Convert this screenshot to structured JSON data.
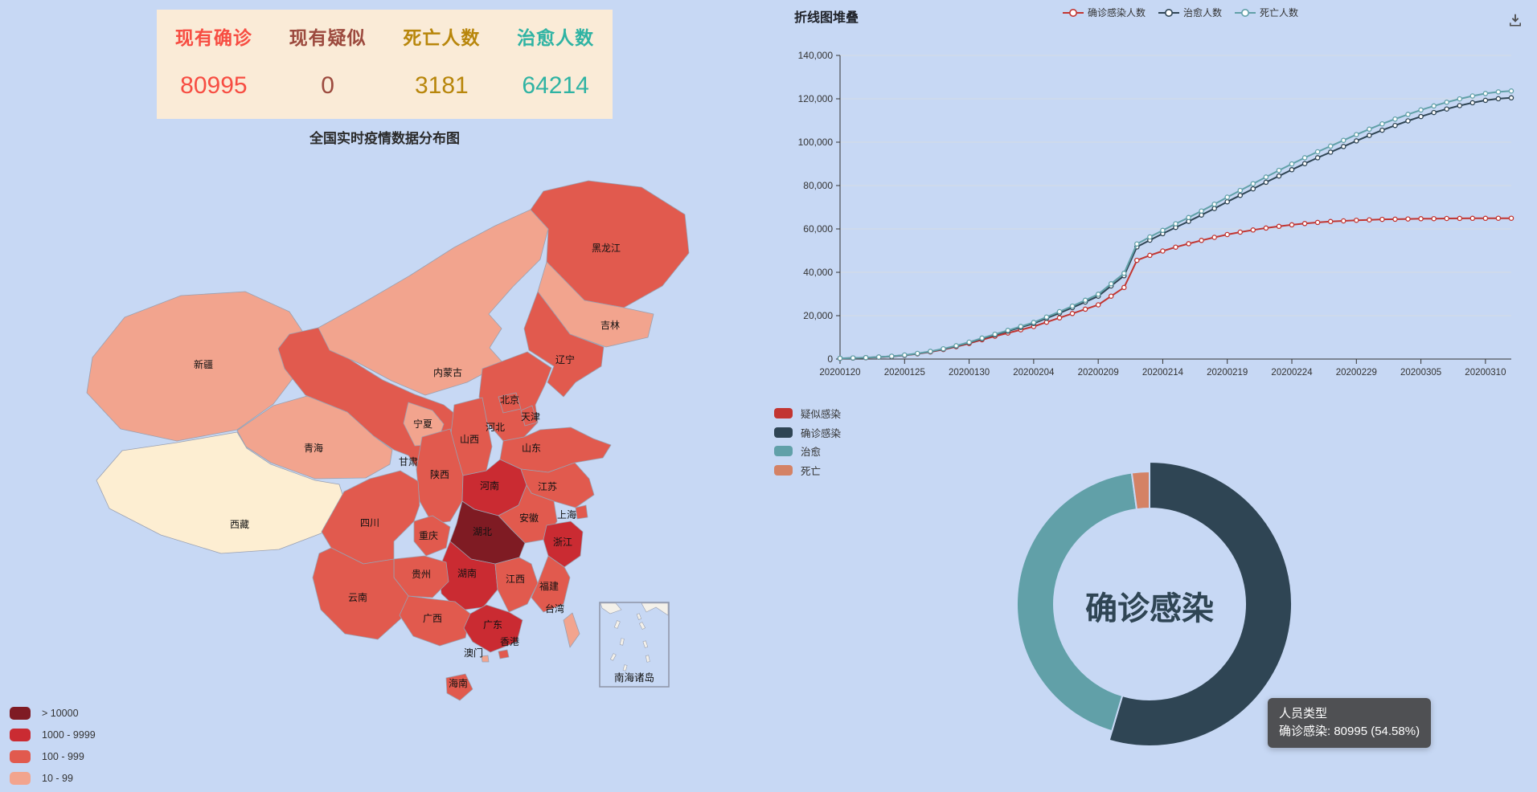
{
  "page": {
    "background": "#c7d8f4"
  },
  "stats_panel": {
    "background": "#faebd7",
    "items": [
      {
        "label": "现有确诊",
        "value": "80995",
        "color": "#f74d42"
      },
      {
        "label": "现有疑似",
        "value": "0",
        "color": "#9c4a3e"
      },
      {
        "label": "死亡人数",
        "value": "3181",
        "color": "#b8860b"
      },
      {
        "label": "治愈人数",
        "value": "64214",
        "color": "#2fb3a3"
      }
    ]
  },
  "map": {
    "title": "全国实时疫情数据分布图",
    "inset_label": "南海诸岛",
    "legend": [
      {
        "level": ">10000",
        "label": "> 10000",
        "color": "#7f1b23"
      },
      {
        "level": "1000-9999",
        "label": "1000 - 9999",
        "color": "#ca2b32"
      },
      {
        "level": "100-999",
        "label": "100 - 999",
        "color": "#e15a4e"
      },
      {
        "level": "10-99",
        "label": "10 - 99",
        "color": "#f2a48e"
      },
      {
        "level": "0-9",
        "label": "0 - 9",
        "color": "#fdeed2"
      }
    ]
  },
  "line_chart": {
    "title": "折线图堆叠",
    "legend": [
      {
        "label": "确诊感染人数",
        "color": "#c23531"
      },
      {
        "label": "治愈人数",
        "color": "#2f4554"
      },
      {
        "label": "死亡人数",
        "color": "#61a0a8"
      }
    ],
    "y_tick_labels": [
      "0",
      "20,000",
      "40,000",
      "60,000",
      "80,000",
      "100,000",
      "120,000",
      "140,000"
    ],
    "toolbox": {
      "save_icon": "download-icon"
    }
  },
  "donut": {
    "center_label": "确诊感染",
    "active": "确诊感染",
    "tooltip": {
      "title": "人员类型",
      "line": "确诊感染: 80995 (54.58%)"
    }
  },
  "chart_data": [
    {
      "type": "heatmap",
      "subtype": "china-choropleth-map",
      "title": "全国实时疫情数据分布图",
      "legend_pieces": [
        ">10000",
        "1000-9999",
        "100-999",
        "10-99",
        "0-9"
      ],
      "regions": [
        {
          "id": "xinjiang",
          "name": "新疆",
          "level": "10-99"
        },
        {
          "id": "xizang",
          "name": "西藏",
          "level": "0-9"
        },
        {
          "id": "qinghai",
          "name": "青海",
          "level": "10-99"
        },
        {
          "id": "gansu",
          "name": "甘肃",
          "level": "100-999"
        },
        {
          "id": "ningxia",
          "name": "宁夏",
          "level": "10-99"
        },
        {
          "id": "neimenggu",
          "name": "内蒙古",
          "level": "10-99"
        },
        {
          "id": "heilongjiang",
          "name": "黑龙江",
          "level": "100-999"
        },
        {
          "id": "jilin",
          "name": "吉林",
          "level": "10-99"
        },
        {
          "id": "liaoning",
          "name": "辽宁",
          "level": "100-999"
        },
        {
          "id": "hebei",
          "name": "河北",
          "level": "100-999"
        },
        {
          "id": "beijing",
          "name": "北京",
          "level": "100-999"
        },
        {
          "id": "tianjin",
          "name": "天津",
          "level": "100-999"
        },
        {
          "id": "shanxi",
          "name": "山西",
          "level": "100-999"
        },
        {
          "id": "shandong",
          "name": "山东",
          "level": "100-999"
        },
        {
          "id": "shaanxi",
          "name": "陕西",
          "level": "100-999"
        },
        {
          "id": "henan",
          "name": "河南",
          "level": "1000-9999"
        },
        {
          "id": "jiangsu",
          "name": "江苏",
          "level": "100-999"
        },
        {
          "id": "anhui",
          "name": "安徽",
          "level": "100-999"
        },
        {
          "id": "shanghai",
          "name": "上海",
          "level": "100-999"
        },
        {
          "id": "hubei",
          "name": "湖北",
          "level": ">10000"
        },
        {
          "id": "zhejiang",
          "name": "浙江",
          "level": "1000-9999"
        },
        {
          "id": "sichuan",
          "name": "四川",
          "level": "100-999"
        },
        {
          "id": "chongqing",
          "name": "重庆",
          "level": "100-999"
        },
        {
          "id": "hunan",
          "name": "湖南",
          "level": "1000-9999"
        },
        {
          "id": "jiangxi",
          "name": "江西",
          "level": "100-999"
        },
        {
          "id": "fujian",
          "name": "福建",
          "level": "100-999"
        },
        {
          "id": "guizhou",
          "name": "贵州",
          "level": "100-999"
        },
        {
          "id": "yunnan",
          "name": "云南",
          "level": "100-999"
        },
        {
          "id": "guangxi",
          "name": "广西",
          "level": "100-999"
        },
        {
          "id": "guangdong",
          "name": "广东",
          "level": "1000-9999"
        },
        {
          "id": "hongkong",
          "name": "香港",
          "level": "100-999"
        },
        {
          "id": "macau",
          "name": "澳门",
          "level": "10-99"
        },
        {
          "id": "hainan",
          "name": "海南",
          "level": "100-999"
        },
        {
          "id": "taiwan",
          "name": "台湾",
          "level": "10-99"
        }
      ]
    },
    {
      "type": "line",
      "title": "折线图堆叠",
      "stacked": true,
      "ylim": [
        0,
        140000
      ],
      "x": [
        "20200120",
        "20200121",
        "20200122",
        "20200123",
        "20200124",
        "20200125",
        "20200126",
        "20200127",
        "20200128",
        "20200129",
        "20200130",
        "20200131",
        "20200201",
        "20200202",
        "20200203",
        "20200204",
        "20200205",
        "20200206",
        "20200207",
        "20200208",
        "20200209",
        "20200210",
        "20200211",
        "20200212",
        "20200213",
        "20200214",
        "20200215",
        "20200216",
        "20200217",
        "20200218",
        "20200219",
        "20200220",
        "20200221",
        "20200222",
        "20200223",
        "20200224",
        "20200225",
        "20200226",
        "20200227",
        "20200228",
        "20200229",
        "20200301",
        "20200302",
        "20200303",
        "20200304",
        "20200305",
        "20200306",
        "20200307",
        "20200308",
        "20200309",
        "20200310",
        "20200311",
        "20200312"
      ],
      "x_label_every": 5,
      "series": [
        {
          "name": "确诊感染人数",
          "color": "#c23531",
          "values": [
            300,
            450,
            600,
            850,
            1200,
            1700,
            2400,
            3300,
            4400,
            5700,
            7200,
            8900,
            10500,
            12000,
            13500,
            15000,
            17000,
            19000,
            21000,
            23000,
            25000,
            29000,
            33000,
            45500,
            47800,
            49800,
            51600,
            53200,
            54700,
            56100,
            57400,
            58500,
            59500,
            60400,
            61200,
            61900,
            62500,
            63000,
            63400,
            63700,
            64000,
            64200,
            64400,
            64500,
            64600,
            64700,
            64750,
            64800,
            64850,
            64880,
            64900,
            64920,
            64940
          ]
        },
        {
          "name": "治愈人数",
          "color": "#2f4554",
          "values": [
            30,
            40,
            50,
            60,
            70,
            90,
            120,
            150,
            200,
            280,
            380,
            500,
            650,
            850,
            1100,
            1400,
            1800,
            2200,
            2700,
            3300,
            4000,
            4700,
            5400,
            6200,
            7000,
            8000,
            9100,
            10300,
            11700,
            13300,
            15100,
            17000,
            19000,
            21100,
            23200,
            25400,
            27600,
            29800,
            32000,
            34300,
            36600,
            38900,
            41100,
            43200,
            45200,
            47100,
            48900,
            50500,
            52000,
            53300,
            54400,
            55100,
            55500
          ]
        },
        {
          "name": "死亡人数",
          "color": "#61a0a8",
          "values": [
            9,
            15,
            20,
            25,
            40,
            55,
            80,
            105,
            130,
            170,
            215,
            260,
            305,
            360,
            425,
            490,
            565,
            635,
            720,
            810,
            900,
            1015,
            1115,
            1365,
            1485,
            1525,
            1665,
            1770,
            1870,
            2005,
            2120,
            2235,
            2345,
            2440,
            2590,
            2665,
            2715,
            2745,
            2790,
            2835,
            2870,
            2910,
            2945,
            2980,
            3010,
            3040,
            3070,
            3095,
            3115,
            3130,
            3140,
            3150,
            3160
          ]
        }
      ]
    },
    {
      "type": "pie",
      "donut": true,
      "center_label": "确诊感染",
      "slices": [
        {
          "name": "疑似感染",
          "value": 0,
          "percent": "0.00%",
          "color": "#c23531"
        },
        {
          "name": "确诊感染",
          "value": 80995,
          "percent": "54.58%",
          "color": "#2f4554"
        },
        {
          "name": "治愈",
          "value": 64214,
          "percent": "43.27%",
          "color": "#61a0a8"
        },
        {
          "name": "死亡",
          "value": 3181,
          "percent": "2.14%",
          "color": "#d48265"
        }
      ],
      "tooltip": {
        "title": "人员类型",
        "line": "确诊感染: 80995 (54.58%)"
      }
    }
  ]
}
